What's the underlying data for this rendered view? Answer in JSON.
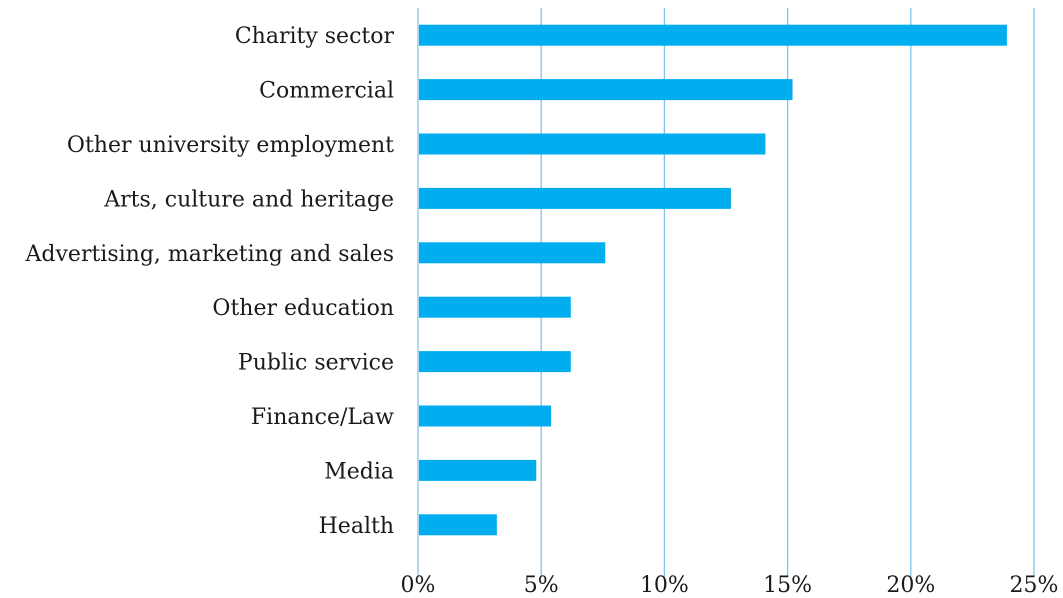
{
  "chart_data": {
    "type": "bar",
    "orientation": "horizontal",
    "title": "",
    "xlabel": "",
    "ylabel": "",
    "categories": [
      "Charity sector",
      "Commercial",
      "Other university employment",
      "Arts, culture and heritage",
      "Advertising, marketing and sales",
      "Other education",
      "Public service",
      "Finance/Law",
      "Media",
      "Health"
    ],
    "values": [
      23.9,
      15.2,
      14.1,
      12.7,
      7.6,
      6.2,
      6.2,
      5.4,
      4.8,
      3.2
    ],
    "value_unit": "%",
    "xlim": [
      0,
      25
    ],
    "xticks": [
      0,
      5,
      10,
      15,
      20,
      25
    ],
    "xtick_labels": [
      "0%",
      "5%",
      "10%",
      "15%",
      "20%",
      "25%"
    ],
    "grid": "vertical",
    "legend": "none",
    "bar_color": "#00AEEF",
    "grid_color": "#7FC3E8"
  }
}
